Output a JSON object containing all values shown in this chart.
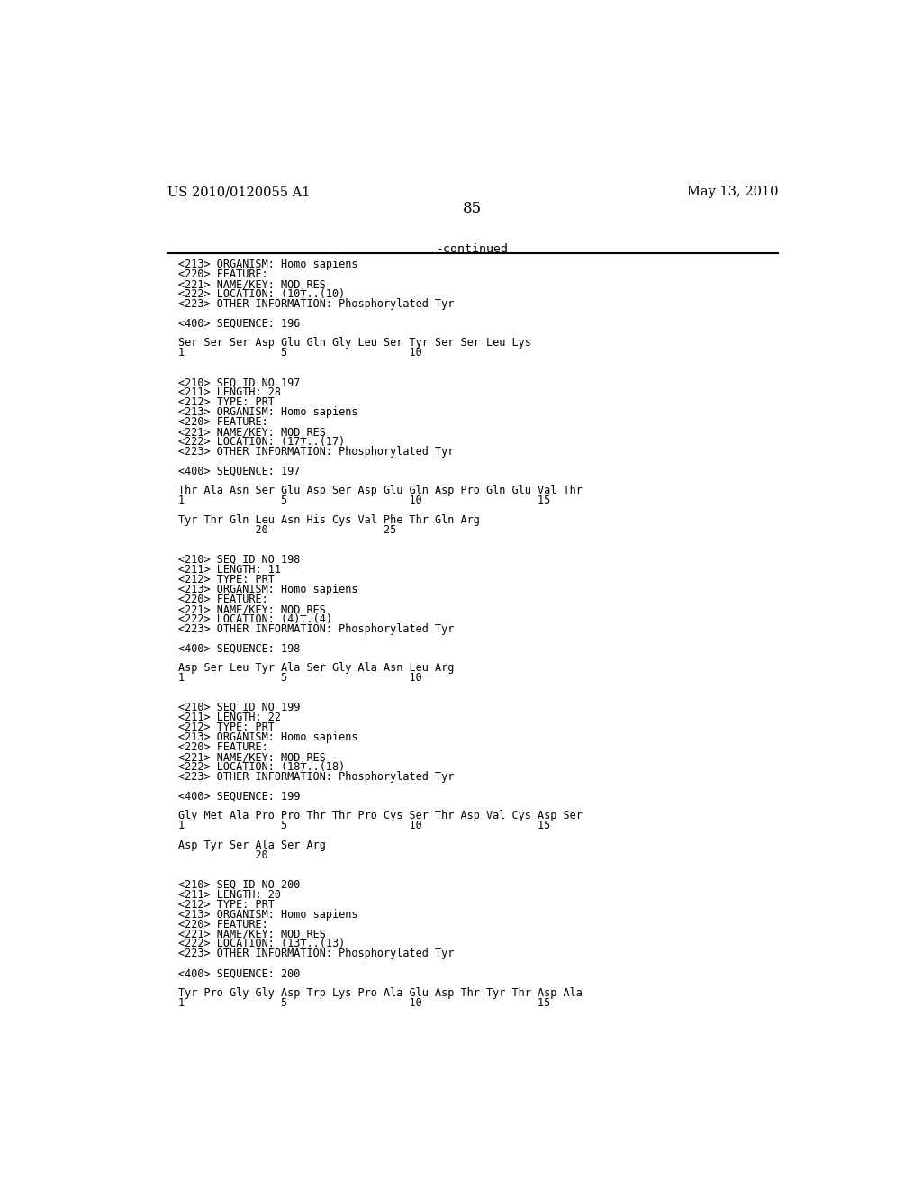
{
  "header_left": "US 2010/0120055 A1",
  "header_right": "May 13, 2010",
  "page_number": "85",
  "continued_text": "-continued",
  "background_color": "#ffffff",
  "text_color": "#000000",
  "figsize": [
    10.24,
    13.2
  ],
  "dpi": 100,
  "lines": [
    "<213> ORGANISM: Homo sapiens",
    "<220> FEATURE:",
    "<221> NAME/KEY: MOD_RES",
    "<222> LOCATION: (10)..(10)",
    "<223> OTHER INFORMATION: Phosphorylated Tyr",
    "",
    "<400> SEQUENCE: 196",
    "",
    "Ser Ser Ser Asp Glu Gln Gly Leu Ser Tyr Ser Ser Leu Lys",
    "1               5                   10",
    "",
    "",
    "<210> SEQ ID NO 197",
    "<211> LENGTH: 28",
    "<212> TYPE: PRT",
    "<213> ORGANISM: Homo sapiens",
    "<220> FEATURE:",
    "<221> NAME/KEY: MOD_RES",
    "<222> LOCATION: (17)..(17)",
    "<223> OTHER INFORMATION: Phosphorylated Tyr",
    "",
    "<400> SEQUENCE: 197",
    "",
    "Thr Ala Asn Ser Glu Asp Ser Asp Glu Gln Asp Pro Gln Glu Val Thr",
    "1               5                   10                  15",
    "",
    "Tyr Thr Gln Leu Asn His Cys Val Phe Thr Gln Arg",
    "            20                  25",
    "",
    "",
    "<210> SEQ ID NO 198",
    "<211> LENGTH: 11",
    "<212> TYPE: PRT",
    "<213> ORGANISM: Homo sapiens",
    "<220> FEATURE:",
    "<221> NAME/KEY: MOD_RES",
    "<222> LOCATION: (4)..(4)",
    "<223> OTHER INFORMATION: Phosphorylated Tyr",
    "",
    "<400> SEQUENCE: 198",
    "",
    "Asp Ser Leu Tyr Ala Ser Gly Ala Asn Leu Arg",
    "1               5                   10",
    "",
    "",
    "<210> SEQ ID NO 199",
    "<211> LENGTH: 22",
    "<212> TYPE: PRT",
    "<213> ORGANISM: Homo sapiens",
    "<220> FEATURE:",
    "<221> NAME/KEY: MOD_RES",
    "<222> LOCATION: (18)..(18)",
    "<223> OTHER INFORMATION: Phosphorylated Tyr",
    "",
    "<400> SEQUENCE: 199",
    "",
    "Gly Met Ala Pro Pro Thr Thr Pro Cys Ser Thr Asp Val Cys Asp Ser",
    "1               5                   10                  15",
    "",
    "Asp Tyr Ser Ala Ser Arg",
    "            20",
    "",
    "",
    "<210> SEQ ID NO 200",
    "<211> LENGTH: 20",
    "<212> TYPE: PRT",
    "<213> ORGANISM: Homo sapiens",
    "<220> FEATURE:",
    "<221> NAME/KEY: MOD_RES",
    "<222> LOCATION: (13)..(13)",
    "<223> OTHER INFORMATION: Phosphorylated Tyr",
    "",
    "<400> SEQUENCE: 200",
    "",
    "Tyr Pro Gly Gly Asp Trp Lys Pro Ala Glu Asp Thr Tyr Thr Asp Ala",
    "1               5                   10                  15"
  ]
}
